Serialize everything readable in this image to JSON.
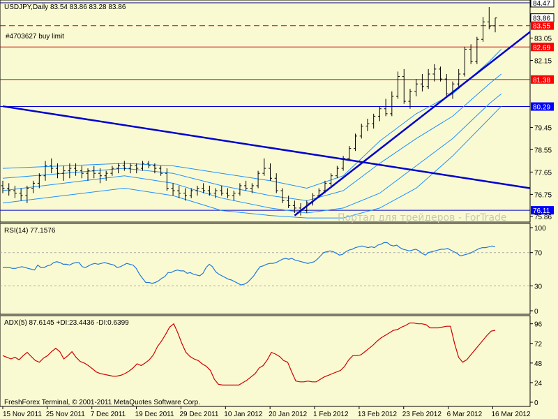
{
  "chart_data": [
    {
      "type": "candlestick",
      "title": "USDJPY,Daily  83.54 83.86 83.28 83.86",
      "symbol": "USDJPY",
      "timeframe": "Daily",
      "last_bar": {
        "open": 83.54,
        "high": 83.86,
        "low": 83.28,
        "close": 83.86
      },
      "ylim": [
        75.86,
        84.47
      ],
      "y_ticks": [
        "84.47",
        "83.86",
        "83.55",
        "83.05",
        "82.69",
        "82.15",
        "81.38",
        "80.29",
        "79.45",
        "78.55",
        "77.65",
        "76.75",
        "76.11",
        "75.86"
      ],
      "highlight_levels": [
        {
          "value": 84.47,
          "label": "84.47",
          "line_color": "#000080",
          "label_bg": "#ffffff",
          "label_fg": "#000000",
          "style": "solid"
        },
        {
          "value": 83.86,
          "label": "83.86",
          "line_color": "",
          "label_bg": "#ffffff",
          "label_fg": "#000000",
          "style": "none"
        },
        {
          "value": 83.55,
          "label": "83.55",
          "line_color": "#cc0000",
          "label_bg": "#ff0000",
          "label_fg": "#ffffff",
          "style": "dashed"
        },
        {
          "value": 82.69,
          "label": "82.69",
          "line_color": "#cc0000",
          "label_bg": "#ff0000",
          "label_fg": "#ffffff",
          "style": "solid"
        },
        {
          "value": 81.38,
          "label": "81.38",
          "line_color": "#cc0000",
          "label_bg": "#ff0000",
          "label_fg": "#ffffff",
          "style": "solid"
        },
        {
          "value": 80.29,
          "label": "80.29",
          "line_color": "#0000cc",
          "label_bg": "#0000ff",
          "label_fg": "#ffffff",
          "style": "solid"
        },
        {
          "value": 76.11,
          "label": "76.11",
          "line_color": "#0000cc",
          "label_bg": "#0000ff",
          "label_fg": "#ffffff",
          "style": "solid"
        }
      ],
      "order_label": "#4703627 buy limit",
      "watermark": "Портал для трейдеров - ForTrade",
      "x_labels": [
        "15 Nov 2011",
        "25 Nov 2011",
        "7 Dec 2011",
        "19 Dec 2011",
        "29 Dec 2011",
        "10 Jan 2012",
        "20 Jan 2012",
        "1 Feb 2012",
        "13 Feb 2012",
        "23 Feb 2012",
        "6 Mar 2012",
        "16 Mar 2012"
      ],
      "bars": [
        [
          77.1,
          77.3,
          76.8,
          77.0
        ],
        [
          77.0,
          77.2,
          76.7,
          76.9
        ],
        [
          76.9,
          77.1,
          76.6,
          76.8
        ],
        [
          76.8,
          77.0,
          76.5,
          76.7
        ],
        [
          76.7,
          77.1,
          76.4,
          77.0
        ],
        [
          77.0,
          77.3,
          76.8,
          77.2
        ],
        [
          77.2,
          77.6,
          77.0,
          77.5
        ],
        [
          77.5,
          78.1,
          77.3,
          77.9
        ],
        [
          77.9,
          78.2,
          77.6,
          77.8
        ],
        [
          77.8,
          78.0,
          77.4,
          77.6
        ],
        [
          77.6,
          77.9,
          77.3,
          77.7
        ],
        [
          77.7,
          78.0,
          77.4,
          77.8
        ],
        [
          77.8,
          78.0,
          77.5,
          77.7
        ],
        [
          77.7,
          77.9,
          77.4,
          77.6
        ],
        [
          77.6,
          77.8,
          77.3,
          77.7
        ],
        [
          77.7,
          77.9,
          77.4,
          77.6
        ],
        [
          77.6,
          77.8,
          77.2,
          77.5
        ],
        [
          77.5,
          77.7,
          77.3,
          77.6
        ],
        [
          77.6,
          77.9,
          77.5,
          77.8
        ],
        [
          77.8,
          78.0,
          77.6,
          77.9
        ],
        [
          77.9,
          78.1,
          77.7,
          77.8
        ],
        [
          77.8,
          78.0,
          77.6,
          77.9
        ],
        [
          77.9,
          78.0,
          77.6,
          77.8
        ],
        [
          77.8,
          78.1,
          77.7,
          78.0
        ],
        [
          78.0,
          78.1,
          77.8,
          77.9
        ],
        [
          77.9,
          78.0,
          77.6,
          77.8
        ],
        [
          77.8,
          77.9,
          77.5,
          77.6
        ],
        [
          77.6,
          77.8,
          76.9,
          77.0
        ],
        [
          77.0,
          77.2,
          76.7,
          76.9
        ],
        [
          76.9,
          77.1,
          76.6,
          76.8
        ],
        [
          76.8,
          77.0,
          76.5,
          76.7
        ],
        [
          76.7,
          77.0,
          76.6,
          76.9
        ],
        [
          76.9,
          77.1,
          76.7,
          77.0
        ],
        [
          77.0,
          77.2,
          76.8,
          76.9
        ],
        [
          76.9,
          77.1,
          76.7,
          76.8
        ],
        [
          76.8,
          77.0,
          76.6,
          76.9
        ],
        [
          76.9,
          77.1,
          76.7,
          76.8
        ],
        [
          76.8,
          77.0,
          76.6,
          76.7
        ],
        [
          76.7,
          76.9,
          76.5,
          76.8
        ],
        [
          76.8,
          77.2,
          76.7,
          77.1
        ],
        [
          77.1,
          77.3,
          76.9,
          77.0
        ],
        [
          77.0,
          77.2,
          76.8,
          77.1
        ],
        [
          77.1,
          77.7,
          77.0,
          77.6
        ],
        [
          77.6,
          78.2,
          77.5,
          77.8
        ],
        [
          77.8,
          78.0,
          77.3,
          77.4
        ],
        [
          77.4,
          77.6,
          76.8,
          76.9
        ],
        [
          76.9,
          77.0,
          76.4,
          76.5
        ],
        [
          76.5,
          76.7,
          76.2,
          76.3
        ],
        [
          76.3,
          76.5,
          76.0,
          76.2
        ],
        [
          76.2,
          76.4,
          75.9,
          76.1
        ],
        [
          76.1,
          76.5,
          76.0,
          76.4
        ],
        [
          76.4,
          76.8,
          76.3,
          76.7
        ],
        [
          76.7,
          77.0,
          76.6,
          76.9
        ],
        [
          76.9,
          77.3,
          76.8,
          77.2
        ],
        [
          77.2,
          77.6,
          77.1,
          77.5
        ],
        [
          77.5,
          77.9,
          77.4,
          77.8
        ],
        [
          77.8,
          78.3,
          77.7,
          78.2
        ],
        [
          78.2,
          78.7,
          78.1,
          78.6
        ],
        [
          78.6,
          79.2,
          78.5,
          79.1
        ],
        [
          79.1,
          79.6,
          79.0,
          79.5
        ],
        [
          79.5,
          79.8,
          79.3,
          79.6
        ],
        [
          79.6,
          80.0,
          79.4,
          79.9
        ],
        [
          79.9,
          80.3,
          79.7,
          80.2
        ],
        [
          80.2,
          80.6,
          79.9,
          80.0
        ],
        [
          80.0,
          80.9,
          79.9,
          80.7
        ],
        [
          80.7,
          81.7,
          80.6,
          81.5
        ],
        [
          81.5,
          81.8,
          80.4,
          80.5
        ],
        [
          80.5,
          81.0,
          80.2,
          80.9
        ],
        [
          80.9,
          81.4,
          80.7,
          81.2
        ],
        [
          81.2,
          81.6,
          80.9,
          81.1
        ],
        [
          81.1,
          81.8,
          81.0,
          81.6
        ],
        [
          81.6,
          82.0,
          81.3,
          81.8
        ],
        [
          81.8,
          81.9,
          81.3,
          81.4
        ],
        [
          81.4,
          81.6,
          80.7,
          80.8
        ],
        [
          80.8,
          81.3,
          80.6,
          81.2
        ],
        [
          81.2,
          81.8,
          81.0,
          81.6
        ],
        [
          81.6,
          82.7,
          81.5,
          82.6
        ],
        [
          82.6,
          82.8,
          82.0,
          82.1
        ],
        [
          82.1,
          83.1,
          82.0,
          83.0
        ],
        [
          83.0,
          83.9,
          82.9,
          83.7
        ],
        [
          83.7,
          84.3,
          83.4,
          83.5
        ],
        [
          83.54,
          83.86,
          83.28,
          83.86
        ]
      ],
      "envelope_bands": [
        {
          "color": "#1e90ff",
          "points": [
            [
              0,
              77.8
            ],
            [
              10,
              77.9
            ],
            [
              20,
              78.0
            ],
            [
              28,
              77.9
            ],
            [
              36,
              77.6
            ],
            [
              44,
              77.3
            ],
            [
              50,
              77.0
            ],
            [
              56,
              77.5
            ],
            [
              62,
              78.9
            ],
            [
              68,
              80.0
            ],
            [
              74,
              80.8
            ],
            [
              80,
              82.1
            ],
            [
              82,
              82.6
            ]
          ]
        },
        {
          "color": "#1e90ff",
          "points": [
            [
              0,
              77.4
            ],
            [
              10,
              77.6
            ],
            [
              20,
              77.8
            ],
            [
              28,
              77.6
            ],
            [
              36,
              77.1
            ],
            [
              44,
              76.7
            ],
            [
              50,
              76.5
            ],
            [
              56,
              76.9
            ],
            [
              62,
              78.0
            ],
            [
              68,
              79.0
            ],
            [
              74,
              79.9
            ],
            [
              80,
              81.2
            ],
            [
              82,
              81.6
            ]
          ]
        },
        {
          "color": "#1e90ff",
          "points": [
            [
              0,
              76.9
            ],
            [
              10,
              77.2
            ],
            [
              20,
              77.5
            ],
            [
              28,
              77.2
            ],
            [
              36,
              76.6
            ],
            [
              44,
              76.2
            ],
            [
              50,
              76.0
            ],
            [
              56,
              76.2
            ],
            [
              62,
              76.8
            ],
            [
              68,
              77.9
            ],
            [
              74,
              79.0
            ],
            [
              80,
              80.4
            ],
            [
              82,
              80.8
            ]
          ]
        },
        {
          "color": "#1e90ff",
          "points": [
            [
              0,
              76.4
            ],
            [
              10,
              76.7
            ],
            [
              20,
              77.0
            ],
            [
              28,
              76.7
            ],
            [
              36,
              76.1
            ],
            [
              44,
              75.9
            ],
            [
              50,
              75.8
            ],
            [
              56,
              75.8
            ],
            [
              62,
              76.2
            ],
            [
              68,
              77.0
            ],
            [
              74,
              78.3
            ],
            [
              80,
              79.8
            ],
            [
              82,
              80.3
            ]
          ]
        }
      ],
      "trendlines": [
        {
          "color": "#0000cc",
          "from": [
            0,
            80.3
          ],
          "to": [
            95,
            77.0
          ]
        },
        {
          "color": "#0000cc",
          "from": [
            48,
            75.9
          ],
          "to": [
            92,
            83.3
          ]
        }
      ]
    },
    {
      "type": "line",
      "title": "RSI(14) 77.1576",
      "ylim": [
        0,
        100
      ],
      "y_ticks": [
        "100",
        "70",
        "30",
        "0"
      ],
      "levels": [
        70,
        30
      ],
      "series": [
        {
          "color": "#1e78dc",
          "values": [
            52,
            52,
            52,
            51,
            51,
            52,
            53,
            52,
            51,
            50,
            49,
            55,
            52,
            52,
            54,
            55,
            58,
            59,
            58,
            56,
            56,
            55,
            57,
            58,
            58,
            53,
            52,
            54,
            56,
            57,
            56,
            57,
            58,
            57,
            56,
            55,
            52,
            53,
            55,
            57,
            56,
            55,
            51,
            44,
            39,
            34,
            34,
            33,
            34,
            36,
            39,
            41,
            46,
            46,
            48,
            49,
            48,
            48,
            45,
            46,
            44,
            43,
            42,
            45,
            52,
            56,
            53,
            47,
            44,
            42,
            40,
            38,
            37,
            35,
            33,
            31,
            32,
            34,
            38,
            42,
            48,
            53,
            54,
            56,
            57,
            57,
            58,
            60,
            62,
            63,
            62,
            63,
            61,
            60,
            59,
            58,
            57,
            58,
            59,
            62,
            66,
            70,
            71,
            72,
            71,
            69,
            67,
            68,
            71,
            73,
            74,
            76,
            77,
            78,
            77,
            76,
            77,
            76,
            79,
            80,
            82,
            82,
            79,
            78,
            79,
            76,
            74,
            73,
            72,
            73,
            74,
            72,
            69,
            67,
            70,
            71,
            72,
            73,
            74,
            74,
            75,
            73,
            71,
            69,
            66,
            67,
            68,
            69,
            71,
            73,
            75,
            76,
            76,
            77,
            78,
            77
          ]
        }
      ]
    },
    {
      "type": "line",
      "title": "ADX(5) 87.6145 +DI:23.4436 -DI:0.6399",
      "ylim": [
        0,
        100
      ],
      "y_ticks": [
        "96",
        "72",
        "48",
        "24",
        "0"
      ],
      "series": [
        {
          "name": "ADX",
          "color": "#cc0000",
          "values": [
            57,
            55,
            53,
            55,
            52,
            57,
            61,
            56,
            51,
            49,
            54,
            57,
            62,
            66,
            62,
            53,
            57,
            62,
            55,
            50,
            48,
            45,
            41,
            37,
            35,
            34,
            33,
            32,
            32,
            33,
            35,
            38,
            42,
            47,
            45,
            48,
            52,
            58,
            68,
            75,
            83,
            92,
            96,
            85,
            72,
            61,
            56,
            53,
            51,
            47,
            44,
            39,
            28,
            22,
            21,
            21,
            21,
            21,
            21,
            24,
            27,
            31,
            35,
            42,
            45,
            52,
            61,
            59,
            56,
            51,
            49,
            37,
            26,
            25,
            25,
            26,
            25,
            25,
            28,
            31,
            33,
            35,
            37,
            39,
            44,
            52,
            57,
            57,
            58,
            62,
            66,
            70,
            75,
            79,
            82,
            85,
            88,
            89,
            92,
            94,
            97,
            97,
            96,
            96,
            95,
            91,
            91,
            91,
            92,
            93,
            93,
            72,
            55,
            49,
            52,
            58,
            64,
            70,
            76,
            82,
            87,
            88
          ]
        },
        {
          "name": "",
          "color": "#cc0000",
          "values": []
        }
      ]
    }
  ],
  "footer": {
    "copyright": "FreshForex Terminal, © 2001-2011 MetaQuotes Software Corp."
  }
}
